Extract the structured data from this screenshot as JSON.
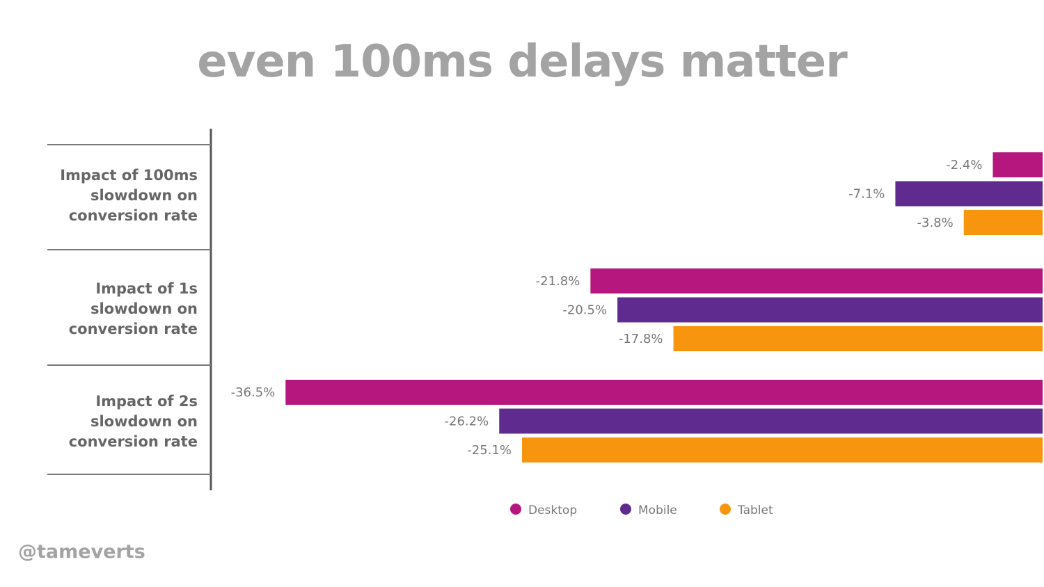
{
  "title": "even 100ms delays matter",
  "handle": "@tameverts",
  "chart_data": {
    "type": "bar",
    "orientation": "horizontal",
    "categories": [
      [
        "Impact of 100ms",
        "slowdown on",
        "conversion rate"
      ],
      [
        "Impact of 1s",
        "slowdown on",
        "conversion rate"
      ],
      [
        "Impact of 2s",
        "slowdown on",
        "conversion rate"
      ]
    ],
    "series": [
      {
        "name": "Desktop",
        "color": "#b5177f",
        "values": [
          -2.4,
          -21.8,
          -36.5
        ],
        "labels": [
          "-2.4%",
          "-21.8%",
          "-36.5%"
        ]
      },
      {
        "name": "Mobile",
        "color": "#602b8f",
        "values": [
          -7.1,
          -20.5,
          -26.2
        ],
        "labels": [
          "-7.1%",
          "-20.5%",
          "-26.2%"
        ]
      },
      {
        "name": "Tablet",
        "color": "#f7950f",
        "values": [
          -3.8,
          -17.8,
          -25.1
        ],
        "labels": [
          "-3.8%",
          "-17.8%",
          "-25.1%"
        ]
      }
    ],
    "xlabel": "",
    "ylabel": "",
    "xlim": [
      -37,
      0
    ],
    "legend": "bottom-center",
    "grid": false
  }
}
